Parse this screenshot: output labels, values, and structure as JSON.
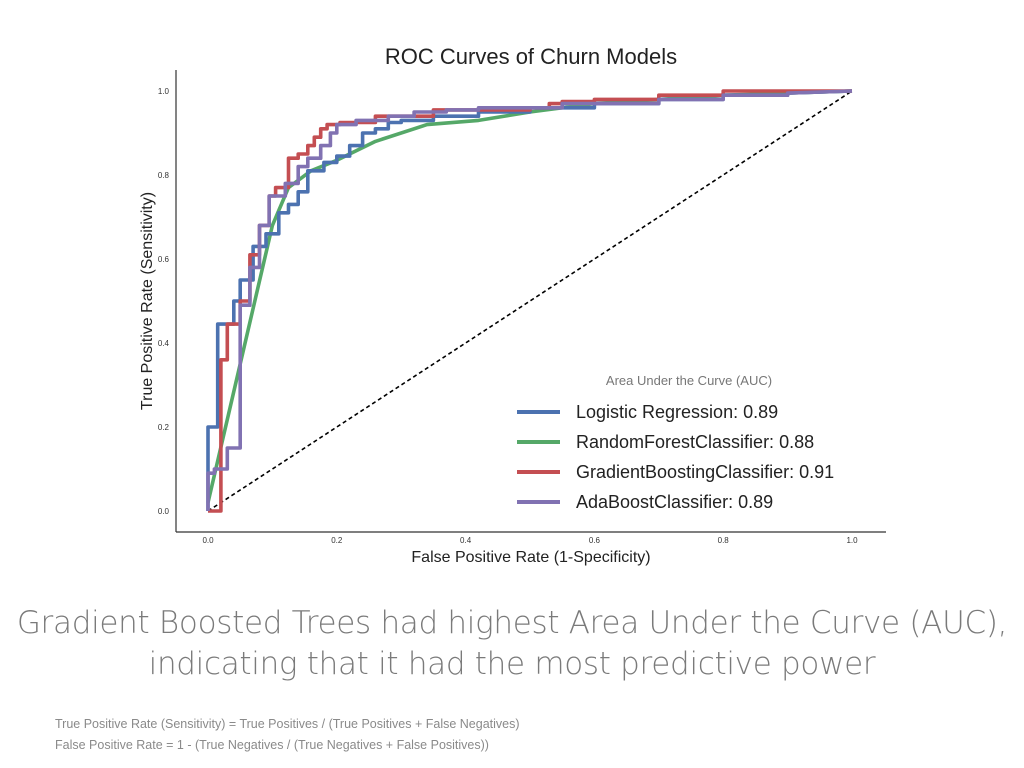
{
  "chart_data": {
    "type": "line",
    "title": "ROC Curves of Churn Models",
    "xlabel": "False Positive Rate (1-Specificity)",
    "ylabel": "True Positive Rate (Sensitivity)",
    "xlim": [
      -0.05,
      1.05
    ],
    "ylim": [
      -0.05,
      1.05
    ],
    "xticks": [
      0.0,
      0.2,
      0.4,
      0.6,
      0.8,
      1.0
    ],
    "yticks": [
      0.0,
      0.2,
      0.4,
      0.6,
      0.8,
      1.0
    ],
    "xtick_labels": [
      "0.0",
      "0.2",
      "0.4",
      "0.6",
      "0.8",
      "1.0"
    ],
    "ytick_labels": [
      "0.0",
      "0.2",
      "0.4",
      "0.6",
      "0.8",
      "1.0"
    ],
    "grid": false,
    "legend_title": "Area Under the Curve (AUC)",
    "legend_position": "lower-right",
    "series": [
      {
        "name": "Logistic Regression: 0.89",
        "color": "#4c72b0",
        "step": true,
        "x": [
          0.0,
          0.0,
          0.015,
          0.015,
          0.04,
          0.04,
          0.05,
          0.05,
          0.07,
          0.07,
          0.09,
          0.09,
          0.11,
          0.11,
          0.125,
          0.125,
          0.14,
          0.14,
          0.155,
          0.155,
          0.18,
          0.18,
          0.2,
          0.2,
          0.22,
          0.22,
          0.24,
          0.24,
          0.26,
          0.26,
          0.28,
          0.28,
          0.3,
          0.3,
          0.35,
          0.35,
          0.42,
          0.42,
          0.5,
          0.5,
          0.6,
          0.6,
          0.7,
          0.7,
          0.8,
          0.8,
          0.9,
          0.9,
          1.0
        ],
        "y": [
          0.0,
          0.2,
          0.2,
          0.445,
          0.445,
          0.5,
          0.5,
          0.55,
          0.55,
          0.63,
          0.63,
          0.66,
          0.66,
          0.71,
          0.71,
          0.73,
          0.73,
          0.76,
          0.76,
          0.81,
          0.81,
          0.83,
          0.83,
          0.845,
          0.845,
          0.87,
          0.87,
          0.9,
          0.9,
          0.91,
          0.91,
          0.925,
          0.925,
          0.93,
          0.93,
          0.94,
          0.94,
          0.95,
          0.95,
          0.96,
          0.96,
          0.97,
          0.97,
          0.98,
          0.98,
          0.99,
          0.99,
          0.995,
          1.0
        ]
      },
      {
        "name": "RandomForestClassifier: 0.88",
        "color": "#55a868",
        "step": false,
        "x": [
          0.0,
          0.05,
          0.1,
          0.125,
          0.16,
          0.2,
          0.26,
          0.34,
          0.42,
          0.5,
          0.6,
          0.7,
          0.8,
          0.9,
          1.0
        ],
        "y": [
          0.02,
          0.35,
          0.68,
          0.77,
          0.81,
          0.835,
          0.88,
          0.92,
          0.93,
          0.95,
          0.97,
          0.98,
          0.99,
          0.995,
          1.0
        ]
      },
      {
        "name": "GradientBoostingClassifier: 0.91",
        "color": "#c44e52",
        "step": true,
        "x": [
          0.0,
          0.02,
          0.02,
          0.03,
          0.03,
          0.05,
          0.05,
          0.065,
          0.065,
          0.08,
          0.08,
          0.095,
          0.095,
          0.105,
          0.105,
          0.125,
          0.125,
          0.14,
          0.14,
          0.155,
          0.155,
          0.165,
          0.165,
          0.175,
          0.175,
          0.185,
          0.185,
          0.205,
          0.205,
          0.26,
          0.26,
          0.35,
          0.35,
          0.5,
          0.5,
          0.53,
          0.53,
          0.55,
          0.55,
          0.6,
          0.6,
          0.7,
          0.7,
          0.8,
          0.8,
          1.0
        ],
        "y": [
          0.0,
          0.0,
          0.36,
          0.36,
          0.445,
          0.445,
          0.5,
          0.5,
          0.61,
          0.61,
          0.68,
          0.68,
          0.75,
          0.75,
          0.77,
          0.77,
          0.84,
          0.84,
          0.85,
          0.85,
          0.87,
          0.87,
          0.89,
          0.89,
          0.91,
          0.91,
          0.92,
          0.92,
          0.925,
          0.925,
          0.94,
          0.94,
          0.955,
          0.955,
          0.96,
          0.96,
          0.97,
          0.97,
          0.975,
          0.975,
          0.98,
          0.98,
          0.99,
          0.99,
          1.0,
          1.0
        ]
      },
      {
        "name": "AdaBoostClassifier: 0.89",
        "color": "#8172b2",
        "step": true,
        "x": [
          0.0,
          0.0,
          0.01,
          0.01,
          0.03,
          0.03,
          0.05,
          0.05,
          0.065,
          0.065,
          0.08,
          0.08,
          0.095,
          0.095,
          0.12,
          0.12,
          0.14,
          0.14,
          0.155,
          0.155,
          0.175,
          0.175,
          0.19,
          0.19,
          0.2,
          0.2,
          0.23,
          0.23,
          0.28,
          0.28,
          0.32,
          0.32,
          0.37,
          0.37,
          0.42,
          0.42,
          0.55,
          0.55,
          0.7,
          0.7,
          0.8,
          0.8,
          0.9,
          0.9,
          1.0
        ],
        "y": [
          0.0,
          0.09,
          0.09,
          0.1,
          0.1,
          0.15,
          0.15,
          0.49,
          0.49,
          0.58,
          0.58,
          0.68,
          0.68,
          0.75,
          0.75,
          0.78,
          0.78,
          0.82,
          0.82,
          0.84,
          0.84,
          0.87,
          0.87,
          0.9,
          0.9,
          0.92,
          0.92,
          0.93,
          0.93,
          0.94,
          0.94,
          0.95,
          0.95,
          0.955,
          0.955,
          0.96,
          0.96,
          0.97,
          0.97,
          0.98,
          0.98,
          0.99,
          0.99,
          0.995,
          1.0
        ]
      },
      {
        "name": "",
        "color": "#000000",
        "dashed": true,
        "step": false,
        "x": [
          0.0,
          1.0
        ],
        "y": [
          0.0,
          1.0
        ]
      }
    ]
  },
  "caption": {
    "line1": "Gradient Boosted Trees had highest Area Under the Curve (AUC),",
    "line2": "indicating that it had the most predictive power"
  },
  "footnotes": {
    "tpr": "True Positive Rate (Sensitivity) = True Positives / (True Positives + False Negatives)",
    "fpr": "False Positive Rate = 1 - (True Negatives / (True Negatives + False Positives))"
  }
}
